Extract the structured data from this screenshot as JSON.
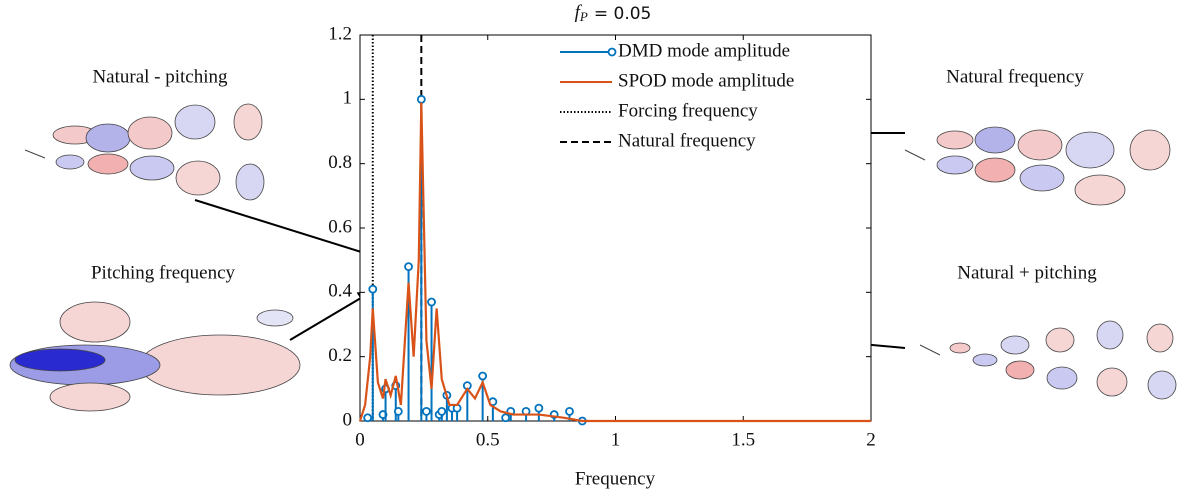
{
  "chart_data": {
    "type": "stem",
    "title": {
      "var": "f",
      "sub": "P",
      "text": "= 0.05"
    },
    "x_label": "Frequency",
    "xlim": [
      0,
      2
    ],
    "xticks": [
      0,
      0.5,
      1,
      1.5,
      2
    ],
    "ylim": [
      0,
      1.2
    ],
    "yticks": [
      0,
      0.2,
      0.4,
      0.6,
      0.8,
      1,
      1.2
    ],
    "legend": "upper right",
    "series": [
      {
        "name": "DMD mode amplitude",
        "kind": "stem",
        "color": "#0072bd",
        "x": [
          0.03,
          0.05,
          0.09,
          0.1,
          0.14,
          0.15,
          0.19,
          0.24,
          0.26,
          0.28,
          0.31,
          0.32,
          0.34,
          0.36,
          0.38,
          0.42,
          0.48,
          0.52,
          0.57,
          0.59,
          0.65,
          0.7,
          0.76,
          0.82,
          0.87
        ],
        "values": [
          0.01,
          0.41,
          0.02,
          0.1,
          0.11,
          0.03,
          0.48,
          1.0,
          0.03,
          0.37,
          0.02,
          0.03,
          0.08,
          0.04,
          0.04,
          0.11,
          0.14,
          0.06,
          0.01,
          0.03,
          0.03,
          0.04,
          0.02,
          0.03,
          0.0
        ]
      },
      {
        "name": "SPOD mode amplitude",
        "kind": "line",
        "color": "#d95319",
        "x": [
          0,
          0.02,
          0.04,
          0.05,
          0.07,
          0.09,
          0.1,
          0.12,
          0.14,
          0.16,
          0.19,
          0.21,
          0.23,
          0.24,
          0.26,
          0.28,
          0.3,
          0.32,
          0.35,
          0.38,
          0.42,
          0.45,
          0.48,
          0.51,
          0.55,
          0.6,
          0.7,
          0.8,
          0.87,
          1.0,
          1.5,
          2.0
        ],
        "values": [
          0,
          0.05,
          0.2,
          0.35,
          0.12,
          0.07,
          0.13,
          0.08,
          0.14,
          0.05,
          0.43,
          0.2,
          0.5,
          0.99,
          0.25,
          0.1,
          0.35,
          0.13,
          0.05,
          0.05,
          0.1,
          0.07,
          0.12,
          0.05,
          0.03,
          0.02,
          0.02,
          0.01,
          0,
          0,
          0,
          0
        ]
      }
    ],
    "vlines": [
      {
        "name": "Forcing frequency",
        "x": 0.05,
        "style": "dotted",
        "color": "#000000"
      },
      {
        "name": "Natural frequency",
        "x": 0.24,
        "style": "dashed",
        "color": "#000000"
      }
    ],
    "annotations": [
      "Natural - pitching",
      "Pitching frequency",
      "Natural frequency",
      "Natural + pitching"
    ]
  }
}
